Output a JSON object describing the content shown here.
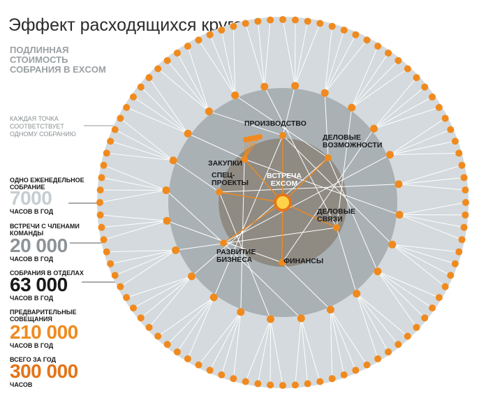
{
  "title": "Эффект расходящихся кругов",
  "subtitle": "ПОДЛИННАЯ СТОИМОСТЬ СОБРАНИЯ В EXCOM",
  "dot_note": "КАЖДАЯ ТОЧКА СООТВЕТСТВУЕТ ОДНОМУ СОБРАНИЮ",
  "stats": [
    {
      "label": "ОДНО ЕЖЕНЕДЕЛЬНОЕ СОБРАНИЕ",
      "value": "7000",
      "unit": "ЧАСОВ В ГОД",
      "color": "#c5cdd1"
    },
    {
      "label": "ВСТРЕЧИ С ЧЛЕНАМИ КОМАНДЫ",
      "value": "20 000",
      "unit": "ЧАСОВ В ГОД",
      "color": "#8d9397"
    },
    {
      "label": "СОБРАНИЯ В ОТДЕЛАХ",
      "value": "63 000",
      "unit": "ЧАСОВ В ГОД",
      "color": "#1a1a1a"
    },
    {
      "label": "ПРЕДВАРИТЕЛЬНЫЕ СОВЕЩАНИЯ",
      "value": "210 000",
      "unit": "ЧАСОВ В ГОД",
      "color": "#f08a1e"
    },
    {
      "label": "ВСЕГО ЗА ГОД",
      "value": "300 000",
      "unit": "ЧАСОВ",
      "color": "#e37418"
    }
  ],
  "diagram": {
    "center": "ВСТРЕЧА EXCOM",
    "labels": {
      "production": "ПРОИЗВОДСТВО",
      "opportunities": "ДЕЛОВЫЕ ВОЗМОЖНОСТИ",
      "purchasing": "ЗАКУПКИ",
      "special": "СПЕЦ-ПРОЕКТЫ",
      "relations": "ДЕЛОВЫЕ СВЯЗИ",
      "development": "РАЗВИТИЕ БИЗНЕСА",
      "finance": "ФИНАНСЫ"
    },
    "colors": {
      "outer": "#d4dadd",
      "middle": "#a9b1b5",
      "inner": "#8f8a82",
      "dot": "#f08a1e",
      "dot_outline": "#e5761a"
    }
  }
}
